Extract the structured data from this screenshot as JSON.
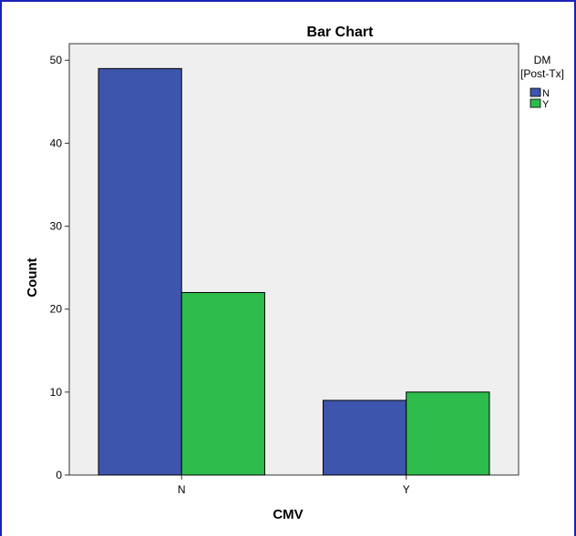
{
  "chart_data": {
    "type": "bar",
    "title": "Bar Chart",
    "xlabel": "CMV",
    "ylabel": "Count",
    "categories": [
      "N",
      "Y"
    ],
    "series": [
      {
        "name": "N",
        "values": [
          49,
          9
        ]
      },
      {
        "name": "Y",
        "values": [
          22,
          10
        ]
      }
    ],
    "ylim": [
      0,
      52
    ],
    "yticks": [
      0,
      10,
      20,
      30,
      40,
      50
    ],
    "grid": false,
    "legend": {
      "title_line1": "DM",
      "title_line2": "[Post-Tx]",
      "placement": "top-right"
    }
  },
  "colors": {
    "frame": "#1a22b8",
    "plot_background": "#efefef",
    "axis": "#333333",
    "series": [
      "#3e55ad",
      "#2ebc4d"
    ]
  }
}
